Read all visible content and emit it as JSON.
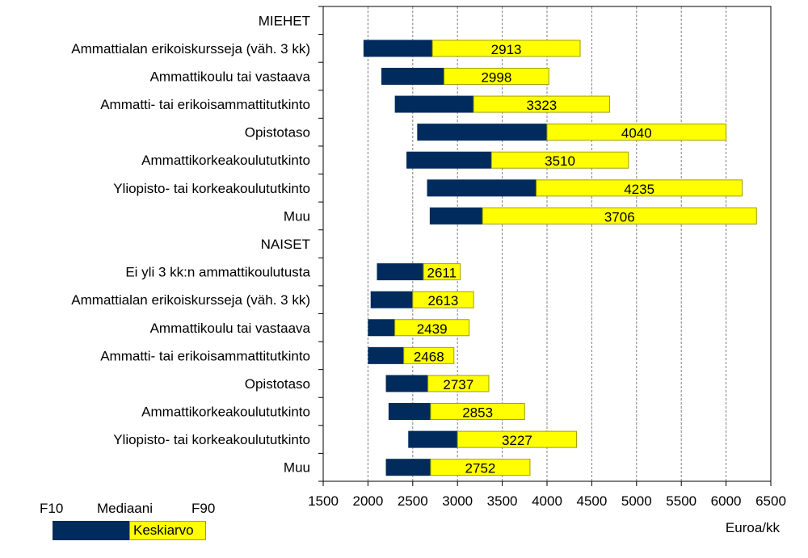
{
  "chart_data": {
    "type": "bar",
    "xlim": [
      1500,
      6500
    ],
    "xticks": [
      1500,
      2000,
      2500,
      3000,
      3500,
      4000,
      4500,
      5000,
      5500,
      6000,
      6500
    ],
    "xlabel": "Euroa/kk",
    "grid": "vertical",
    "colors": {
      "f10_median": "#002B5C",
      "median_f90": "#FFFF00",
      "grid": "#808080"
    },
    "categories": [
      "MIEHET",
      "Ammattialan erikoiskursseja (väh. 3 kk)",
      "Ammattikoulu tai vastaava",
      "Ammatti- tai erikoisammattitutkinto",
      "Opistotaso",
      "Ammattikorkeakoulututkinto",
      "Yliopisto- tai korkeakoulututkinto",
      "Muu",
      "NAISET",
      "Ei yli 3 kk:n ammattikoulutusta",
      "Ammattialan erikoiskursseja (väh. 3 kk)",
      "Ammattikoulu tai vastaava",
      "Ammatti- tai erikoisammattitutkinto",
      "Opistotaso",
      "Ammattikorkeakoulututkinto",
      "Yliopisto- tai korkeakoulututkinto",
      "Muu"
    ],
    "series": [
      {
        "name": "F10",
        "values": [
          null,
          1950,
          2150,
          2300,
          2550,
          2430,
          2660,
          2690,
          null,
          2100,
          2030,
          2000,
          2000,
          2200,
          2230,
          2450,
          2200
        ]
      },
      {
        "name": "Mediaani",
        "values": [
          null,
          2720,
          2850,
          3180,
          4000,
          3380,
          3880,
          3280,
          null,
          2620,
          2500,
          2300,
          2400,
          2670,
          2700,
          3000,
          2700
        ]
      },
      {
        "name": "F90",
        "values": [
          null,
          4370,
          4020,
          4700,
          6000,
          4910,
          6180,
          6340,
          null,
          3030,
          3180,
          3130,
          2960,
          3350,
          3750,
          4330,
          3810
        ]
      },
      {
        "name": "Keskiarvo",
        "values": [
          null,
          2913,
          2998,
          3323,
          4040,
          3510,
          4235,
          3706,
          null,
          2611,
          2613,
          2439,
          2468,
          2737,
          2853,
          3227,
          2752
        ]
      }
    ]
  },
  "legend": {
    "f10": "F10",
    "median": "Mediaani",
    "f90": "F90",
    "mean": "Keskiarvo"
  }
}
